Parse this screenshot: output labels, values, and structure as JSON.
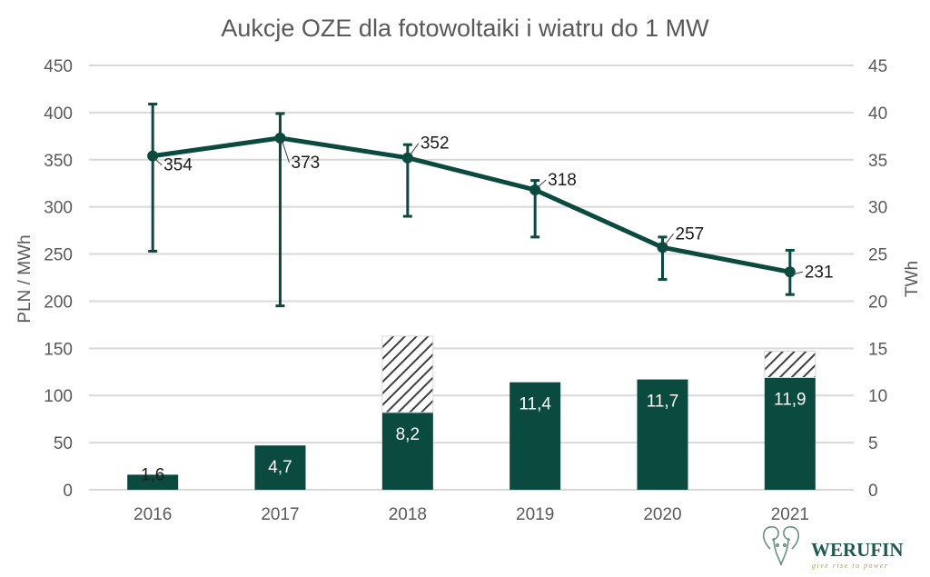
{
  "chart_data": {
    "type": "bar+line",
    "title": "Aukcje OZE dla fotowoltaiki i wiatru do 1 MW",
    "categories": [
      "2016",
      "2017",
      "2018",
      "2019",
      "2020",
      "2021"
    ],
    "y_left": {
      "label": "PLN / MWh",
      "lim": [
        0,
        450
      ],
      "ticks": [
        0,
        50,
        100,
        150,
        200,
        250,
        300,
        350,
        400,
        450
      ]
    },
    "y_right": {
      "label": "TWh",
      "lim": [
        0,
        45
      ],
      "ticks": [
        0,
        5,
        10,
        15,
        20,
        25,
        30,
        35,
        40,
        45
      ]
    },
    "grid": true,
    "legend": "none",
    "bars": {
      "axis": "right",
      "values": [
        1.6,
        4.7,
        8.2,
        11.4,
        11.7,
        11.9
      ],
      "labels": [
        "1,6",
        "4,7",
        "8,2",
        "11,4",
        "11,7",
        "11,9"
      ],
      "hatched_extra": [
        0,
        0,
        8.1,
        0,
        0,
        2.8
      ],
      "color": "#0b4a3f"
    },
    "line": {
      "axis": "left",
      "values": [
        354,
        373,
        352,
        318,
        257,
        231
      ],
      "labels": [
        "354",
        "373",
        "352",
        "318",
        "257",
        "231"
      ],
      "error_low": [
        253,
        195,
        290,
        268,
        223,
        207
      ],
      "error_high": [
        409,
        399,
        366,
        328,
        268,
        254
      ],
      "color": "#0b4a3f"
    }
  },
  "logo": {
    "name": "WERUFIN",
    "tagline": "give rise to power",
    "color": "#1f5a4e",
    "accent": "#b59a5a"
  }
}
